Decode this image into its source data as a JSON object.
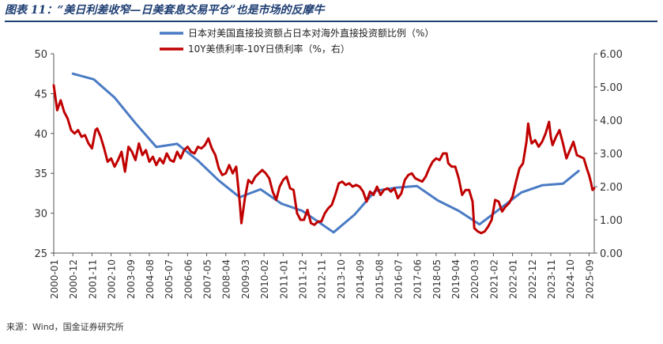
{
  "figure_title": "图表 11：“美日利差收窄—日美套息交易平仓”也是市场的反摩牛",
  "source_note": "来源：Wind，国金证券研究所",
  "colors": {
    "series1": "#4a7bc4",
    "series2": "#c00000",
    "title": "#1f3f73"
  },
  "chart_data": {
    "type": "line",
    "title": "",
    "legend": {
      "placement": "top-center",
      "entries": [
        "日本对美国直接投资额占日本对海外直接投资额比例（%）",
        "10Y美债利率-10Y日债利率（%，右）"
      ]
    },
    "x_ticks": [
      "2000-01",
      "2000-12",
      "2001-11",
      "2002-10",
      "2003-09",
      "2004-08",
      "2005-07",
      "2006-06",
      "2007-05",
      "2008-04",
      "2009-03",
      "2010-02",
      "2011-01",
      "2011-12",
      "2012-11",
      "2013-10",
      "2014-09",
      "2015-08",
      "2016-07",
      "2017-06",
      "2018-05",
      "2019-04",
      "2020-03",
      "2021-02",
      "2022-01",
      "2022-12",
      "2023-11",
      "2024-10",
      "2025-09"
    ],
    "y_left": {
      "ticks": [
        "25",
        "30",
        "35",
        "40",
        "45",
        "50"
      ],
      "range": [
        25,
        50
      ]
    },
    "y_right": {
      "ticks": [
        "0.00",
        "1.00",
        "2.00",
        "3.00",
        "4.00",
        "5.00",
        "6.00"
      ],
      "range": [
        0,
        6
      ]
    },
    "grid": false,
    "series": [
      {
        "name": "日本对美国直接投资额占日本对海外直接投资额比例（%）",
        "axis": "left",
        "points": [
          [
            "2000-12",
            47.5
          ],
          [
            "2001-12",
            46.8
          ],
          [
            "2002-12",
            44.5
          ],
          [
            "2003-12",
            41.3
          ],
          [
            "2004-12",
            38.3
          ],
          [
            "2005-12",
            38.7
          ],
          [
            "2006-12",
            36.6
          ],
          [
            "2007-12",
            34.1
          ],
          [
            "2008-12",
            32.0
          ],
          [
            "2009-12",
            33.0
          ],
          [
            "2010-12",
            31.2
          ],
          [
            "2011-12",
            30.3
          ],
          [
            "2012-12",
            28.5
          ],
          [
            "2013-06",
            27.6
          ],
          [
            "2014-06",
            29.8
          ],
          [
            "2015-06",
            32.8
          ],
          [
            "2016-06",
            33.2
          ],
          [
            "2017-06",
            33.4
          ],
          [
            "2018-06",
            31.6
          ],
          [
            "2019-06",
            30.3
          ],
          [
            "2020-06",
            28.6
          ],
          [
            "2021-06",
            30.6
          ],
          [
            "2022-06",
            32.6
          ],
          [
            "2023-06",
            33.5
          ],
          [
            "2024-06",
            33.7
          ],
          [
            "2025-03",
            35.3
          ]
        ]
      },
      {
        "name": "10Y美债利率-10Y日债利率（%，右）",
        "axis": "right",
        "points": [
          [
            "2000-01",
            5.05
          ],
          [
            "2000-03",
            4.3
          ],
          [
            "2000-05",
            4.6
          ],
          [
            "2000-07",
            4.25
          ],
          [
            "2000-09",
            4.05
          ],
          [
            "2000-11",
            3.7
          ],
          [
            "2001-01",
            3.6
          ],
          [
            "2001-03",
            3.7
          ],
          [
            "2001-05",
            3.5
          ],
          [
            "2001-07",
            3.55
          ],
          [
            "2001-09",
            3.3
          ],
          [
            "2001-11",
            3.15
          ],
          [
            "2002-01",
            3.7
          ],
          [
            "2002-02",
            3.75
          ],
          [
            "2002-04",
            3.5
          ],
          [
            "2002-06",
            3.15
          ],
          [
            "2002-08",
            2.75
          ],
          [
            "2002-10",
            2.85
          ],
          [
            "2002-12",
            2.6
          ],
          [
            "2003-02",
            2.8
          ],
          [
            "2003-04",
            3.05
          ],
          [
            "2003-06",
            2.45
          ],
          [
            "2003-08",
            3.2
          ],
          [
            "2003-10",
            3.05
          ],
          [
            "2003-12",
            2.8
          ],
          [
            "2004-02",
            3.3
          ],
          [
            "2004-04",
            2.95
          ],
          [
            "2004-06",
            3.1
          ],
          [
            "2004-08",
            2.75
          ],
          [
            "2004-10",
            2.9
          ],
          [
            "2004-12",
            2.65
          ],
          [
            "2005-02",
            2.85
          ],
          [
            "2005-04",
            2.7
          ],
          [
            "2005-06",
            3.0
          ],
          [
            "2005-08",
            2.8
          ],
          [
            "2005-10",
            2.75
          ],
          [
            "2005-12",
            3.05
          ],
          [
            "2006-02",
            2.85
          ],
          [
            "2006-04",
            3.1
          ],
          [
            "2006-06",
            3.2
          ],
          [
            "2006-08",
            3.05
          ],
          [
            "2006-10",
            3.0
          ],
          [
            "2006-12",
            3.2
          ],
          [
            "2007-02",
            3.15
          ],
          [
            "2007-04",
            3.25
          ],
          [
            "2007-06",
            3.45
          ],
          [
            "2007-08",
            3.15
          ],
          [
            "2007-10",
            2.95
          ],
          [
            "2007-12",
            2.55
          ],
          [
            "2008-02",
            2.35
          ],
          [
            "2008-04",
            2.4
          ],
          [
            "2008-06",
            2.65
          ],
          [
            "2008-08",
            2.4
          ],
          [
            "2008-10",
            2.6
          ],
          [
            "2008-12",
            1.55
          ],
          [
            "2009-01",
            0.9
          ],
          [
            "2009-03",
            1.65
          ],
          [
            "2009-05",
            2.2
          ],
          [
            "2009-07",
            2.1
          ],
          [
            "2009-09",
            2.3
          ],
          [
            "2009-11",
            2.4
          ],
          [
            "2010-01",
            2.5
          ],
          [
            "2010-03",
            2.4
          ],
          [
            "2010-05",
            2.25
          ],
          [
            "2010-07",
            1.85
          ],
          [
            "2010-09",
            1.6
          ],
          [
            "2010-11",
            2.0
          ],
          [
            "2011-01",
            2.2
          ],
          [
            "2011-03",
            2.3
          ],
          [
            "2011-05",
            1.95
          ],
          [
            "2011-07",
            1.9
          ],
          [
            "2011-09",
            1.2
          ],
          [
            "2011-11",
            1.0
          ],
          [
            "2012-01",
            1.0
          ],
          [
            "2012-03",
            1.3
          ],
          [
            "2012-05",
            0.9
          ],
          [
            "2012-07",
            0.85
          ],
          [
            "2012-09",
            0.95
          ],
          [
            "2012-11",
            0.95
          ],
          [
            "2013-01",
            1.2
          ],
          [
            "2013-03",
            1.35
          ],
          [
            "2013-05",
            1.45
          ],
          [
            "2013-07",
            1.75
          ],
          [
            "2013-09",
            2.1
          ],
          [
            "2013-11",
            2.15
          ],
          [
            "2014-01",
            2.05
          ],
          [
            "2014-03",
            2.1
          ],
          [
            "2014-05",
            2.0
          ],
          [
            "2014-07",
            2.05
          ],
          [
            "2014-09",
            2.0
          ],
          [
            "2014-11",
            1.85
          ],
          [
            "2015-01",
            1.55
          ],
          [
            "2015-03",
            1.85
          ],
          [
            "2015-05",
            1.75
          ],
          [
            "2015-07",
            2.0
          ],
          [
            "2015-09",
            1.75
          ],
          [
            "2015-11",
            1.9
          ],
          [
            "2016-01",
            1.95
          ],
          [
            "2016-03",
            1.85
          ],
          [
            "2016-05",
            1.95
          ],
          [
            "2016-07",
            1.65
          ],
          [
            "2016-09",
            1.8
          ],
          [
            "2016-11",
            2.2
          ],
          [
            "2017-01",
            2.35
          ],
          [
            "2017-03",
            2.4
          ],
          [
            "2017-05",
            2.25
          ],
          [
            "2017-07",
            2.2
          ],
          [
            "2017-09",
            2.15
          ],
          [
            "2017-11",
            2.3
          ],
          [
            "2018-01",
            2.55
          ],
          [
            "2018-03",
            2.75
          ],
          [
            "2018-05",
            2.85
          ],
          [
            "2018-07",
            2.8
          ],
          [
            "2018-09",
            3.0
          ],
          [
            "2018-11",
            3.0
          ],
          [
            "2018-12",
            2.7
          ],
          [
            "2019-02",
            2.6
          ],
          [
            "2019-04",
            2.6
          ],
          [
            "2019-06",
            2.25
          ],
          [
            "2019-08",
            1.75
          ],
          [
            "2019-10",
            1.9
          ],
          [
            "2019-12",
            1.9
          ],
          [
            "2020-02",
            1.55
          ],
          [
            "2020-03",
            0.75
          ],
          [
            "2020-05",
            0.65
          ],
          [
            "2020-07",
            0.6
          ],
          [
            "2020-09",
            0.65
          ],
          [
            "2020-11",
            0.8
          ],
          [
            "2021-01",
            1.0
          ],
          [
            "2021-03",
            1.6
          ],
          [
            "2021-05",
            1.55
          ],
          [
            "2021-07",
            1.25
          ],
          [
            "2021-09",
            1.4
          ],
          [
            "2021-11",
            1.5
          ],
          [
            "2022-01",
            1.7
          ],
          [
            "2022-03",
            2.15
          ],
          [
            "2022-05",
            2.55
          ],
          [
            "2022-07",
            2.7
          ],
          [
            "2022-09",
            3.35
          ],
          [
            "2022-10",
            3.9
          ],
          [
            "2022-11",
            3.55
          ],
          [
            "2022-12",
            3.3
          ],
          [
            "2023-02",
            3.4
          ],
          [
            "2023-04",
            3.2
          ],
          [
            "2023-06",
            3.35
          ],
          [
            "2023-08",
            3.6
          ],
          [
            "2023-10",
            3.95
          ],
          [
            "2023-11",
            3.5
          ],
          [
            "2023-12",
            3.25
          ],
          [
            "2024-02",
            3.5
          ],
          [
            "2024-04",
            3.7
          ],
          [
            "2024-06",
            3.3
          ],
          [
            "2024-08",
            2.85
          ],
          [
            "2024-10",
            3.1
          ],
          [
            "2024-12",
            3.35
          ],
          [
            "2025-02",
            2.95
          ],
          [
            "2025-04",
            2.9
          ],
          [
            "2025-06",
            2.85
          ],
          [
            "2025-08",
            2.5
          ],
          [
            "2025-09",
            2.35
          ],
          [
            "2025-10",
            2.15
          ],
          [
            "2025-11",
            1.9
          ],
          [
            "2025-12",
            1.95
          ]
        ]
      }
    ]
  }
}
